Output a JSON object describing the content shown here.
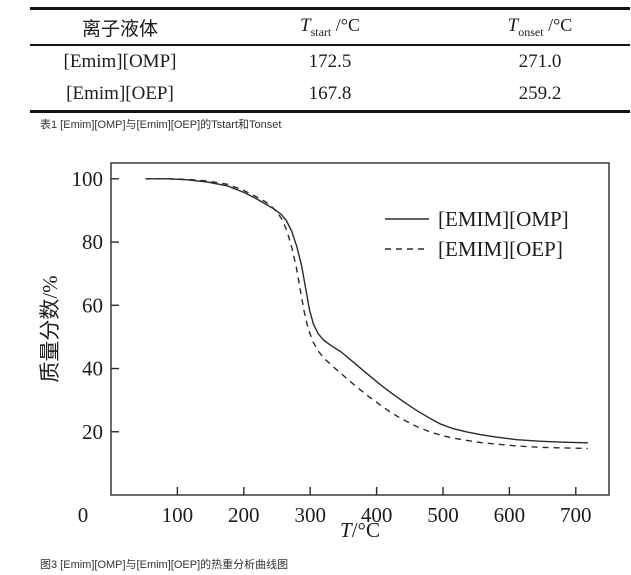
{
  "table": {
    "headers": {
      "liquid": "离子液体",
      "tstart": {
        "sym": "T",
        "sub": "start",
        "unit": " /°C"
      },
      "tonset": {
        "sym": "T",
        "sub": "onset",
        "unit": " /°C"
      }
    },
    "rows": [
      {
        "liquid": "[Emim][OMP]",
        "tstart": "172.5",
        "tonset": "271.0"
      },
      {
        "liquid": "[Emim][OEP]",
        "tstart": "167.8",
        "tonset": "259.2"
      }
    ],
    "caption": "表1 [Emim][OMP]与[Emim][OEP]的Tstart和Tonset"
  },
  "figure_caption": "图3 [Emim][OMP]与[Emim][OEP]的热重分析曲线图",
  "chart_data": {
    "type": "line",
    "title": "",
    "xlabel": {
      "sym": "T",
      "unit": "/°C"
    },
    "ylabel": "质量分数/%",
    "xlim": [
      0,
      750
    ],
    "ylim": [
      0,
      105
    ],
    "x_ticks": [
      100,
      200,
      300,
      400,
      500,
      600,
      700
    ],
    "y_ticks": [
      20,
      40,
      60,
      80,
      100
    ],
    "origin_label": "0",
    "grid": false,
    "legend_position": "upper right inside",
    "legend": [
      {
        "label": "[EMIM][OMP]",
        "style": "solid"
      },
      {
        "label": "[EMIM][OEP]",
        "style": "dashed"
      }
    ],
    "series": [
      {
        "name": "[EMIM][OMP]",
        "style": "solid",
        "points": [
          [
            52,
            100
          ],
          [
            85,
            100
          ],
          [
            115,
            99.7
          ],
          [
            145,
            99.0
          ],
          [
            175,
            97.8
          ],
          [
            200,
            95.7
          ],
          [
            218,
            93.8
          ],
          [
            233,
            92.0
          ],
          [
            246,
            90.4
          ],
          [
            256,
            88.8
          ],
          [
            264,
            86.8
          ],
          [
            272,
            83.5
          ],
          [
            280,
            78.5
          ],
          [
            287,
            72.5
          ],
          [
            293,
            65.5
          ],
          [
            299,
            58.5
          ],
          [
            305,
            54.0
          ],
          [
            312,
            51.0
          ],
          [
            320,
            49.0
          ],
          [
            332,
            47.2
          ],
          [
            347,
            45.2
          ],
          [
            365,
            42.0
          ],
          [
            385,
            38.5
          ],
          [
            405,
            35.0
          ],
          [
            422,
            32.3
          ],
          [
            440,
            29.6
          ],
          [
            460,
            26.8
          ],
          [
            480,
            24.3
          ],
          [
            497,
            22.4
          ],
          [
            515,
            21.0
          ],
          [
            535,
            20.0
          ],
          [
            556,
            19.1
          ],
          [
            580,
            18.3
          ],
          [
            611,
            17.5
          ],
          [
            645,
            17.0
          ],
          [
            680,
            16.7
          ],
          [
            718,
            16.5
          ]
        ]
      },
      {
        "name": "[EMIM][OEP]",
        "style": "dashed",
        "points": [
          [
            52,
            100
          ],
          [
            85,
            100
          ],
          [
            115,
            99.8
          ],
          [
            145,
            99.3
          ],
          [
            175,
            98.3
          ],
          [
            200,
            96.3
          ],
          [
            218,
            94.4
          ],
          [
            233,
            92.7
          ],
          [
            243,
            91.0
          ],
          [
            251,
            89.2
          ],
          [
            258,
            87.0
          ],
          [
            265,
            83.5
          ],
          [
            272,
            78.5
          ],
          [
            279,
            72.0
          ],
          [
            285,
            65.0
          ],
          [
            291,
            58.0
          ],
          [
            297,
            52.5
          ],
          [
            304,
            48.5
          ],
          [
            312,
            45.5
          ],
          [
            322,
            43.0
          ],
          [
            335,
            40.5
          ],
          [
            350,
            37.8
          ],
          [
            368,
            34.5
          ],
          [
            386,
            31.5
          ],
          [
            404,
            28.7
          ],
          [
            422,
            26.0
          ],
          [
            440,
            23.8
          ],
          [
            460,
            21.7
          ],
          [
            480,
            20.0
          ],
          [
            497,
            18.9
          ],
          [
            515,
            18.0
          ],
          [
            535,
            17.3
          ],
          [
            556,
            16.6
          ],
          [
            580,
            16.1
          ],
          [
            611,
            15.5
          ],
          [
            645,
            15.1
          ],
          [
            680,
            14.9
          ],
          [
            718,
            14.7
          ]
        ]
      }
    ]
  }
}
